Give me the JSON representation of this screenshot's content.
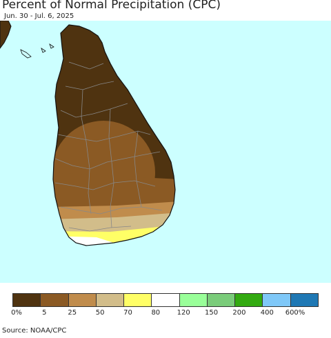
{
  "title": "Percent of Normal Precipitation (CPC)",
  "date_range": "Jun. 30 - Jul. 6, 2025",
  "source": "Source: NOAA/CPC",
  "colors": {
    "ocean": "#ccffff",
    "land_outline": "#111111",
    "boundaries": "#888888"
  },
  "legend": {
    "swatches": [
      "#4f3310",
      "#8b5a24",
      "#c08c4c",
      "#d2bd8a",
      "#ffff66",
      "#ffffff",
      "#99ff99",
      "#7acc7a",
      "#33aa11",
      "#7fc8f8",
      "#1f78b4"
    ],
    "labels": [
      "0%",
      "5",
      "25",
      "50",
      "70",
      "80",
      "120",
      "150",
      "200",
      "400",
      "600%"
    ]
  }
}
